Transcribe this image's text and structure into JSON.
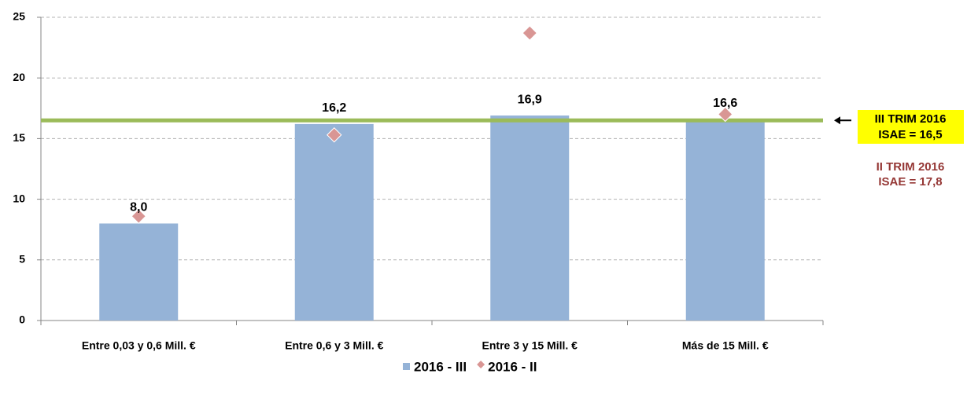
{
  "chart_data": {
    "type": "bar",
    "categories": [
      "Entre 0,03 y 0,6 Mill. €",
      "Entre 0,6 y 3 Mill. €",
      "Entre 3 y 15 Mill. €",
      "Más de 15 Mill. €"
    ],
    "series": [
      {
        "name": "2016 - III",
        "type": "bar",
        "color": "#95b3d7",
        "values": [
          8.0,
          16.2,
          16.9,
          16.6
        ],
        "value_labels": [
          "8,0",
          "16,2",
          "16,9",
          "16,6"
        ]
      },
      {
        "name": "2016 - II",
        "type": "scatter",
        "color": "#d99694",
        "values": [
          8.6,
          15.3,
          23.7,
          17.0
        ]
      }
    ],
    "ylim": [
      0,
      25
    ],
    "yticks": [
      0,
      5,
      10,
      15,
      20,
      25
    ],
    "grid": true,
    "reference_line": {
      "value": 16.5,
      "color": "#9bbb59"
    },
    "annotations": [
      {
        "lines": [
          "III TRIM 2016",
          "ISAE = 16,5"
        ],
        "color": "#000000",
        "background": "#ffff00"
      },
      {
        "lines": [
          "II TRIM 2016",
          "ISAE = 17,8"
        ],
        "color": "#953735"
      }
    ]
  }
}
